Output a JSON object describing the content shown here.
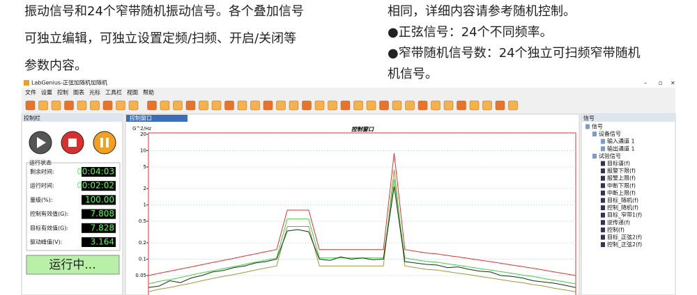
{
  "document": {
    "left_lines": [
      "振动信号和24个窄带随机振动信号。各个叠加信号",
      "可独立编辑，可独立设置定频/扫频、开启/关闭等",
      "参数内容。"
    ],
    "right_lines": [
      "相同，详细内容请参考随机控制。",
      "●正弦信号：24个不同频率。",
      "●窄带随机信号数：24个独立可扫频窄带随机",
      "机信号。"
    ]
  },
  "window": {
    "title": "LabGenius-正弦加随机加随机",
    "menu": [
      "文件",
      "设置",
      "控制",
      "图表",
      "光标",
      "工具栏",
      "视图",
      "帮助"
    ],
    "control_bar": {
      "title": "控制栏",
      "status_title": "运行状态",
      "rows": [
        {
          "label": "剩余时间:",
          "value": "00:04:03"
        },
        {
          "label": "运行时间:",
          "value": "00:02:02"
        },
        {
          "label": "量级(%):",
          "value": "100.00"
        },
        {
          "label": "控制有效值(G):",
          "value": "7.808"
        },
        {
          "label": "目标有效值(G):",
          "value": "7.828"
        },
        {
          "label": "驱动峰值(V):",
          "value": "3.164"
        }
      ],
      "run_button": "运行中..."
    },
    "tab": "控制窗口",
    "plot": {
      "type": "line",
      "title": "控制窗口",
      "y_label": "G^2/Hz",
      "log_scale": true,
      "grid": true,
      "ylim": [
        0.02,
        20
      ],
      "yticks": [
        20,
        10,
        5,
        2,
        1,
        0.5,
        0.2,
        0.1,
        0.05
      ],
      "series": [
        {
          "color": "#e03030",
          "values": [
            0.05,
            0.055,
            0.06,
            0.066,
            0.072,
            0.079,
            0.087,
            0.095,
            0.104,
            0.114,
            0.125,
            0.137,
            0.15,
            0.8,
            0.8,
            0.8,
            0.15,
            0.15,
            0.15,
            0.15,
            0.15,
            0.15,
            0.15,
            9,
            0.15,
            0.14,
            0.13,
            0.125,
            0.117,
            0.11,
            0.103,
            0.096,
            0.09,
            0.084,
            0.078,
            0.073,
            0.068,
            0.063,
            0.058,
            0.054,
            0.05
          ]
        },
        {
          "color": "#9a9a3a",
          "values": [
            0.025,
            0.028,
            0.03,
            0.033,
            0.036,
            0.04,
            0.044,
            0.048,
            0.052,
            0.057,
            0.063,
            0.069,
            0.075,
            0.4,
            0.4,
            0.4,
            0.075,
            0.075,
            0.075,
            0.075,
            0.075,
            0.075,
            0.075,
            4.5,
            0.075,
            0.07,
            0.065,
            0.063,
            0.059,
            0.055,
            0.052,
            0.048,
            0.045,
            0.042,
            0.039,
            0.037,
            0.034,
            0.032,
            0.029,
            0.027,
            0.025
          ]
        },
        {
          "color": "#40d040",
          "values": [
            0.035,
            0.039,
            0.042,
            0.046,
            0.051,
            0.056,
            0.061,
            0.067,
            0.073,
            0.08,
            0.088,
            0.096,
            0.105,
            0.55,
            0.55,
            0.55,
            0.105,
            0.105,
            0.105,
            0.105,
            0.105,
            0.105,
            0.105,
            3,
            0.105,
            0.098,
            0.091,
            0.088,
            0.082,
            0.077,
            0.072,
            0.067,
            0.063,
            0.059,
            0.055,
            0.051,
            0.048,
            0.044,
            0.041,
            0.038,
            0.035
          ]
        },
        {
          "color": "#103010",
          "values": [
            0.03,
            0.032,
            0.04,
            0.037,
            0.045,
            0.05,
            0.058,
            0.062,
            0.07,
            0.075,
            0.085,
            0.09,
            0.1,
            0.33,
            0.35,
            0.32,
            0.1,
            0.095,
            0.11,
            0.1,
            0.105,
            0.098,
            0.1,
            2.2,
            0.09,
            0.085,
            0.08,
            0.078,
            0.07,
            0.072,
            0.065,
            0.06,
            0.058,
            0.05,
            0.048,
            0.045,
            0.04,
            0.038,
            0.036,
            0.033,
            0.03
          ]
        }
      ]
    },
    "signal_panel": {
      "title": "信号",
      "tree": [
        "信号",
        "设备信号",
        "输入通道 1",
        "输出通道 1",
        "试验信号",
        "目标谱(f)",
        "报警下限(f)",
        "报警上限(f)",
        "中断下限(f)",
        "中断上限(f)",
        "目标_随机(f)",
        "控制_随机(f)",
        "目标_窄带1(f)",
        "逆传递(f)",
        "控制(f)",
        "目标_正弦2(f)",
        "控制_正弦2(f)"
      ]
    }
  }
}
